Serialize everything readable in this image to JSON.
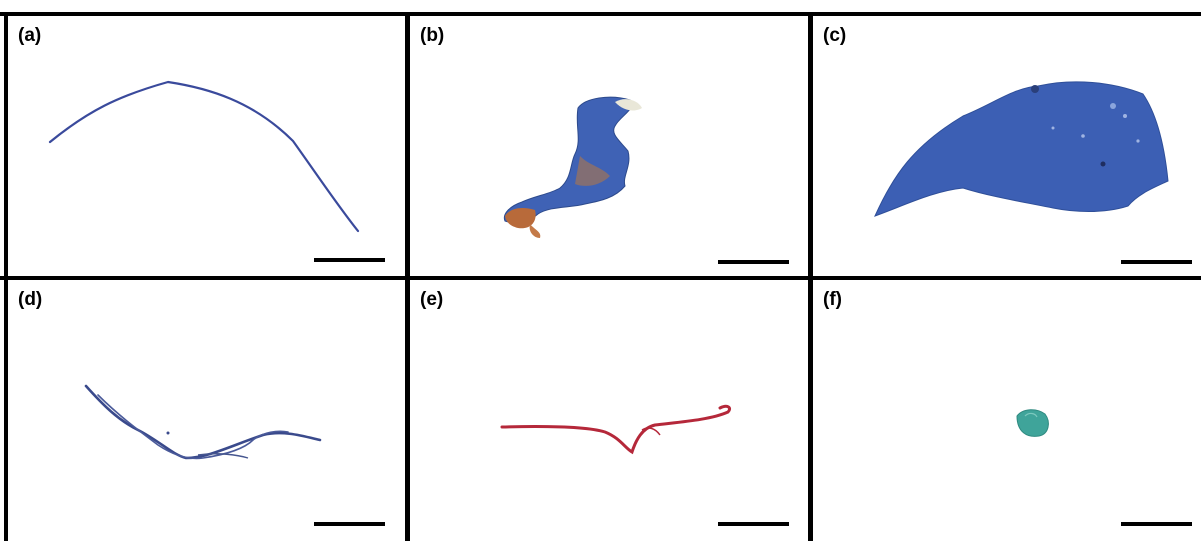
{
  "panels": [
    {
      "label": "(a)",
      "specimen": "blue-fiber"
    },
    {
      "label": "(b)",
      "specimen": "blue-orange-fragment"
    },
    {
      "label": "(c)",
      "specimen": "blue-film"
    },
    {
      "label": "(d)",
      "specimen": "blue-fiber-bundle"
    },
    {
      "label": "(e)",
      "specimen": "red-fiber"
    },
    {
      "label": "(f)",
      "specimen": "green-particle"
    }
  ],
  "colors": {
    "border": "#000000",
    "background": "#ffffff",
    "blue": "#3f5fb0",
    "orange": "#b86a3a",
    "red": "#b5283a",
    "green": "#3fa49a"
  }
}
